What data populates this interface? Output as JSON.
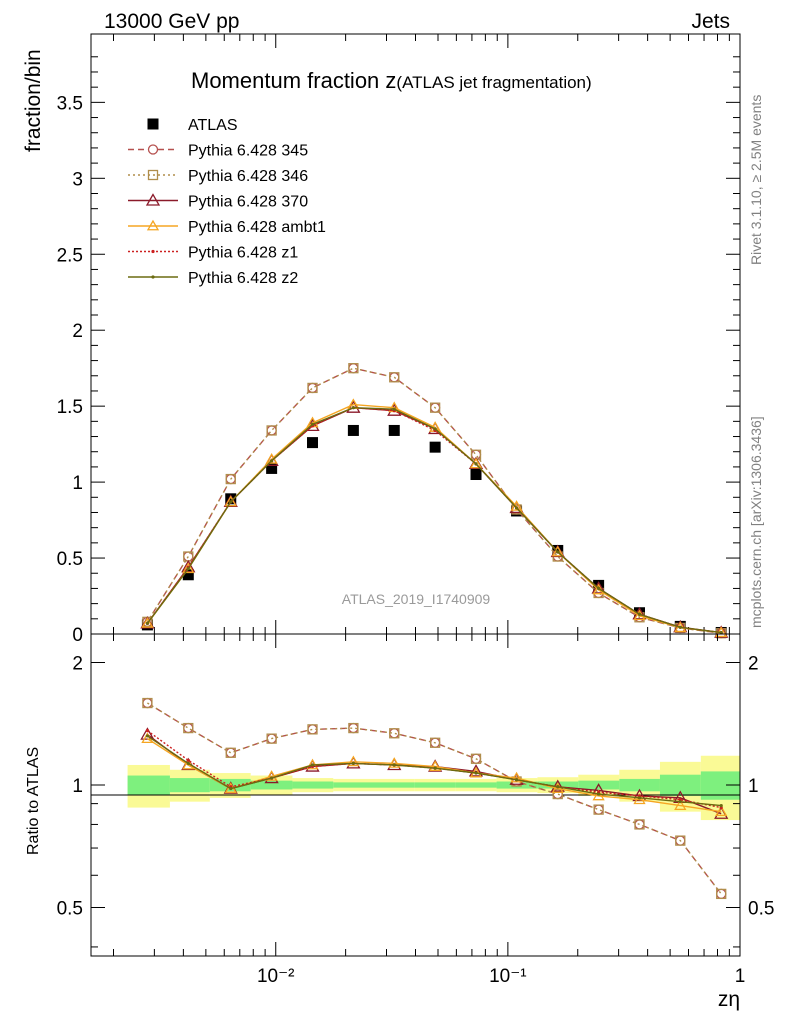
{
  "header": {
    "left": "13000 GeV pp",
    "right": "Jets"
  },
  "side_labels": {
    "top": "Rivet 3.1.10, ≥ 2.5M events",
    "bottom": "mcplots.cern.ch [arXiv:1306.3436]"
  },
  "colors": {
    "atlas": "#000000",
    "p345": "#b5504e",
    "p346": "#b08d4b",
    "p370": "#8b1a2a",
    "ambt1": "#f5a623",
    "z1": "#cc2020",
    "z2": "#6b6b10",
    "band_inner": "#7ef07e",
    "band_outer": "#fafa96"
  },
  "chart_data": [
    {
      "type": "line",
      "title": "Momentum fraction z",
      "title_sub": "(ATLAS jet fragmentation)",
      "ylabel": "fraction/bin",
      "xlabel": "zη",
      "xscale": "log",
      "xlim": [
        0.0016,
        1.0
      ],
      "ylim": [
        0,
        3.95
      ],
      "yticks": [
        0,
        0.5,
        1,
        1.5,
        2,
        2.5,
        3,
        3.5
      ],
      "ytick_labels": [
        "0",
        "0.5",
        "1",
        "1.5",
        "2",
        "2.5",
        "3",
        "3.5"
      ],
      "watermark": "ATLAS_2019_I1740909",
      "x": [
        0.0028,
        0.0042,
        0.0064,
        0.0096,
        0.0144,
        0.0216,
        0.0324,
        0.0486,
        0.0729,
        0.109,
        0.164,
        0.246,
        0.369,
        0.553,
        0.83
      ],
      "series": [
        {
          "name": "ATLAS",
          "key": "atlas",
          "values": [
            0.06,
            0.39,
            0.89,
            1.09,
            1.26,
            1.34,
            1.34,
            1.23,
            1.05,
            0.81,
            0.55,
            0.32,
            0.14,
            0.05,
            0.01
          ]
        },
        {
          "name": "Pythia 6.428 345",
          "key": "p345",
          "values": [
            0.08,
            0.51,
            1.02,
            1.34,
            1.62,
            1.75,
            1.69,
            1.49,
            1.18,
            0.82,
            0.51,
            0.27,
            0.11,
            0.04,
            0.005
          ]
        },
        {
          "name": "Pythia 6.428 346",
          "key": "p346",
          "values": [
            0.08,
            0.51,
            1.02,
            1.34,
            1.62,
            1.75,
            1.69,
            1.49,
            1.18,
            0.82,
            0.51,
            0.27,
            0.11,
            0.04,
            0.005
          ]
        },
        {
          "name": "Pythia 6.428 370",
          "key": "p370",
          "values": [
            0.07,
            0.44,
            0.87,
            1.14,
            1.37,
            1.49,
            1.47,
            1.35,
            1.12,
            0.83,
            0.54,
            0.3,
            0.13,
            0.045,
            0.009
          ]
        },
        {
          "name": "Pythia 6.428 ambt1",
          "key": "ambt1",
          "values": [
            0.07,
            0.43,
            0.87,
            1.15,
            1.39,
            1.51,
            1.49,
            1.36,
            1.12,
            0.84,
            0.54,
            0.29,
            0.12,
            0.042,
            0.009
          ]
        },
        {
          "name": "Pythia 6.428 z1",
          "key": "z1",
          "values": [
            0.07,
            0.44,
            0.87,
            1.14,
            1.37,
            1.49,
            1.47,
            1.34,
            1.12,
            0.83,
            0.54,
            0.3,
            0.13,
            0.045,
            0.009
          ]
        },
        {
          "name": "Pythia 6.428 z2",
          "key": "z2",
          "values": [
            0.07,
            0.43,
            0.87,
            1.14,
            1.38,
            1.49,
            1.48,
            1.35,
            1.12,
            0.83,
            0.54,
            0.3,
            0.13,
            0.044,
            0.009
          ]
        }
      ]
    },
    {
      "type": "line",
      "ylabel": "Ratio to ATLAS",
      "xlabel": "zη",
      "xscale": "log",
      "xlim": [
        0.0016,
        1.0
      ],
      "ylim": [
        0.38,
        2.35
      ],
      "yticks_labeled": [
        0.5,
        1,
        2
      ],
      "ytick_labels": [
        "0.5",
        "1",
        "2"
      ],
      "xtick_labels": [
        "10⁻²",
        "10⁻¹",
        "1"
      ],
      "reference_line": 1,
      "band_edges": [
        0.0023,
        0.0035,
        0.0052,
        0.0078,
        0.0118,
        0.0177,
        0.0265,
        0.0397,
        0.0596,
        0.0894,
        0.134,
        0.201,
        0.302,
        0.452,
        0.678,
        1.0
      ],
      "band_inner": [
        0.055,
        0.04,
        0.035,
        0.025,
        0.02,
        0.015,
        0.015,
        0.015,
        0.015,
        0.02,
        0.02,
        0.025,
        0.035,
        0.06,
        0.08
      ],
      "band_outer": [
        0.12,
        0.09,
        0.07,
        0.055,
        0.04,
        0.035,
        0.035,
        0.035,
        0.035,
        0.04,
        0.045,
        0.06,
        0.09,
        0.14,
        0.18
      ],
      "x": [
        0.0028,
        0.0042,
        0.0064,
        0.0096,
        0.0144,
        0.0216,
        0.0324,
        0.0486,
        0.0729,
        0.109,
        0.164,
        0.246,
        0.369,
        0.553,
        0.83
      ],
      "series": [
        {
          "name": "Pythia 6.428 345",
          "key": "p345",
          "values": [
            1.59,
            1.38,
            1.2,
            1.3,
            1.37,
            1.38,
            1.34,
            1.27,
            1.16,
            1.02,
            0.95,
            0.87,
            0.8,
            0.73,
            0.54
          ]
        },
        {
          "name": "Pythia 6.428 346",
          "key": "p346",
          "values": [
            1.59,
            1.38,
            1.2,
            1.3,
            1.37,
            1.38,
            1.34,
            1.27,
            1.16,
            1.02,
            0.95,
            0.87,
            0.8,
            0.73,
            0.54
          ]
        },
        {
          "name": "Pythia 6.428 370",
          "key": "p370",
          "values": [
            1.33,
            1.12,
            0.98,
            1.04,
            1.11,
            1.13,
            1.12,
            1.11,
            1.08,
            1.03,
            0.99,
            0.97,
            0.94,
            0.93,
            0.85
          ]
        },
        {
          "name": "Pythia 6.428 ambt1",
          "key": "ambt1",
          "values": [
            1.3,
            1.12,
            0.98,
            1.05,
            1.12,
            1.14,
            1.13,
            1.11,
            1.07,
            1.04,
            0.98,
            0.94,
            0.92,
            0.89,
            0.86
          ]
        },
        {
          "name": "Pythia 6.428 z1",
          "key": "z1",
          "values": [
            1.36,
            1.15,
            0.99,
            1.04,
            1.11,
            1.13,
            1.12,
            1.1,
            1.07,
            1.03,
            0.99,
            0.96,
            0.94,
            0.92,
            0.88
          ]
        },
        {
          "name": "Pythia 6.428 z2",
          "key": "z2",
          "values": [
            1.32,
            1.13,
            0.98,
            1.04,
            1.12,
            1.13,
            1.12,
            1.1,
            1.07,
            1.03,
            0.99,
            0.95,
            0.93,
            0.91,
            0.89
          ]
        }
      ]
    }
  ]
}
